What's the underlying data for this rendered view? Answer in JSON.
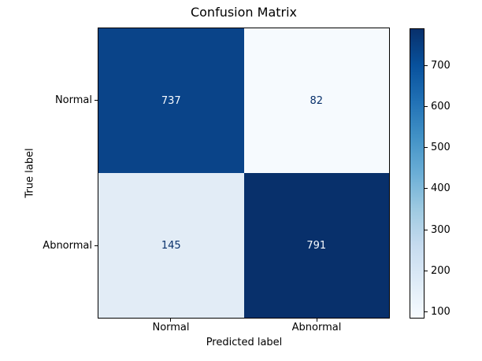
{
  "chart_data": {
    "type": "heatmap",
    "title": "Confusion Matrix",
    "xlabel": "Predicted label",
    "ylabel": "True label",
    "x_categories": [
      "Normal",
      "Abnormal"
    ],
    "y_categories": [
      "Normal",
      "Abnormal"
    ],
    "matrix": [
      [
        737,
        82
      ],
      [
        145,
        791
      ]
    ],
    "vmin": 82,
    "vmax": 791,
    "colormap": "Blues",
    "legend_position": "right-colorbar",
    "grid": false,
    "colorbar_ticks": [
      100,
      200,
      300,
      400,
      500,
      600,
      700
    ],
    "colormap_stops": [
      "#f7fbff",
      "#deebf7",
      "#c6dbef",
      "#9ecae1",
      "#6baed6",
      "#4292c6",
      "#2171b5",
      "#08519c",
      "#08306b"
    ],
    "cells": [
      {
        "true": "Normal",
        "predicted": "Normal",
        "value": 737,
        "bg": "#0a4489",
        "fg": "#f7fbff"
      },
      {
        "true": "Normal",
        "predicted": "Abnormal",
        "value": 82,
        "bg": "#f6fafe",
        "fg": "#08306b"
      },
      {
        "true": "Abnormal",
        "predicted": "Normal",
        "value": 145,
        "bg": "#e2ecf6",
        "fg": "#08306b"
      },
      {
        "true": "Abnormal",
        "predicted": "Abnormal",
        "value": 791,
        "bg": "#08306b",
        "fg": "#f7fbff"
      }
    ]
  }
}
